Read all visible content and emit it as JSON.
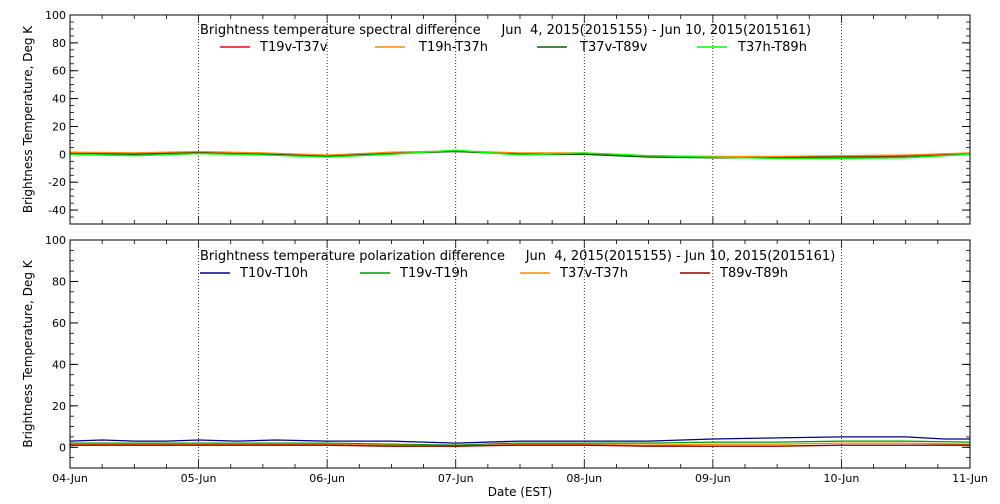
{
  "chart_data": [
    {
      "type": "line",
      "title": "Brightness temperature spectral difference     Jun  4, 2015(2015155) - Jun 10, 2015(2015161)",
      "ylabel": "Brightness Temperature, Deg K",
      "xlabel": "",
      "ylim": [
        -50,
        100
      ],
      "yticks": [
        -40,
        -20,
        0,
        20,
        40,
        60,
        80,
        100
      ],
      "xlim": [
        0,
        7
      ],
      "x_tick_labels": [
        "04-Jun",
        "05-Jun",
        "06-Jun",
        "07-Jun",
        "08-Jun",
        "09-Jun",
        "10-Jun",
        "11-Jun"
      ],
      "show_x_tick_labels": false,
      "grid": "dotted vertical at day boundaries",
      "legend_placement": "top",
      "colors": {
        "T19v-T37v": "#ff0000",
        "T19h-T37h": "#ff8c00",
        "T37v-T89v": "#006400",
        "T37h-T89h": "#00ff00"
      },
      "series": [
        {
          "name": "T19v-T37v",
          "color": "#ff0000",
          "x": [
            0,
            0.5,
            1,
            1.5,
            2,
            2.5,
            3,
            3.5,
            4,
            4.5,
            5,
            5.5,
            6,
            6.5,
            7
          ],
          "values": [
            1,
            0.5,
            1.5,
            0.5,
            -1,
            1,
            2,
            0.5,
            0.5,
            -1.5,
            -2,
            -2,
            -1.5,
            -1,
            0.5
          ]
        },
        {
          "name": "T19h-T37h",
          "color": "#ff8c00",
          "x": [
            0,
            0.5,
            1,
            1.5,
            2,
            2.5,
            3,
            3.5,
            4,
            4.5,
            5,
            5.5,
            6,
            6.5,
            7
          ],
          "values": [
            1.5,
            1,
            2,
            1,
            -0.5,
            1.5,
            2.5,
            1,
            1,
            -1,
            -1.5,
            -1.5,
            -1,
            -0.5,
            1
          ]
        },
        {
          "name": "T37v-T89v",
          "color": "#006400",
          "x": [
            0,
            0.5,
            1,
            1.5,
            2,
            2.5,
            3,
            3.5,
            4,
            4.5,
            5,
            5.5,
            6,
            6.5,
            7
          ],
          "values": [
            0.5,
            0,
            1,
            0,
            -1.5,
            0.5,
            2,
            0,
            0,
            -2,
            -2.5,
            -2.5,
            -2,
            -2,
            0
          ]
        },
        {
          "name": "T37h-T89h",
          "color": "#00ff00",
          "x": [
            0,
            0.5,
            1,
            1.5,
            2,
            2.5,
            3,
            3.5,
            4,
            4.5,
            5,
            5.5,
            6,
            6.5,
            7
          ],
          "values": [
            0,
            -1,
            0.5,
            -0.5,
            -2,
            0,
            3,
            -0.5,
            1,
            -1,
            -2,
            -3,
            -3,
            -2.5,
            0
          ]
        }
      ]
    },
    {
      "type": "line",
      "title": "Brightness temperature polarization difference     Jun  4, 2015(2015155) - Jun 10, 2015(2015161)",
      "ylabel": "Brightness Temperature, Deg K",
      "xlabel": "Date (EST)",
      "ylim": [
        -10,
        100
      ],
      "yticks": [
        0,
        20,
        40,
        60,
        80,
        100
      ],
      "xlim": [
        0,
        7
      ],
      "x_tick_labels": [
        "04-Jun",
        "05-Jun",
        "06-Jun",
        "07-Jun",
        "08-Jun",
        "09-Jun",
        "10-Jun",
        "11-Jun"
      ],
      "show_x_tick_labels": true,
      "grid": "dotted vertical at day boundaries",
      "legend_placement": "top",
      "colors": {
        "T10v-T10h": "#00008b",
        "T19v-T19h": "#009900",
        "T37v-T37h": "#ff8c00",
        "T89v-T89h": "#8b0000"
      },
      "series": [
        {
          "name": "T10v-T10h",
          "color": "#00008b",
          "x": [
            0,
            0.25,
            0.5,
            0.75,
            1,
            1.3,
            1.6,
            2,
            2.5,
            3,
            3.5,
            4,
            4.5,
            5,
            5.5,
            6,
            6.5,
            6.8,
            7
          ],
          "values": [
            3,
            3.5,
            3,
            3,
            3.5,
            3,
            3.5,
            3,
            3,
            2,
            3,
            3,
            3,
            4,
            4.5,
            5,
            5,
            4,
            4
          ]
        },
        {
          "name": "T19v-T19h",
          "color": "#009900",
          "x": [
            0,
            0.5,
            1,
            1.5,
            2,
            2.5,
            3,
            3.5,
            4,
            4.5,
            5,
            5.5,
            6,
            6.5,
            7
          ],
          "values": [
            2,
            2,
            2,
            2,
            2,
            1.5,
            1,
            2,
            2,
            2,
            2.5,
            2.5,
            3,
            3,
            2.5
          ]
        },
        {
          "name": "T37v-T37h",
          "color": "#ff8c00",
          "x": [
            0,
            0.5,
            1,
            1.5,
            2,
            2.5,
            3,
            3.5,
            4,
            4.5,
            5,
            5.5,
            6,
            6.5,
            7
          ],
          "values": [
            1.5,
            1.5,
            1.5,
            1.5,
            1.5,
            1,
            0.5,
            1.5,
            1.5,
            1,
            1.5,
            1.5,
            2,
            2,
            1.5
          ]
        },
        {
          "name": "T89v-T89h",
          "color": "#8b0000",
          "x": [
            0,
            0.5,
            1,
            1.5,
            2,
            2.5,
            3,
            3.5,
            4,
            4.5,
            5,
            5.5,
            6,
            6.5,
            7
          ],
          "values": [
            1,
            1,
            1,
            1,
            1,
            0.5,
            0.5,
            1,
            1,
            0.5,
            0.5,
            0.5,
            1,
            1,
            1
          ]
        }
      ]
    }
  ]
}
